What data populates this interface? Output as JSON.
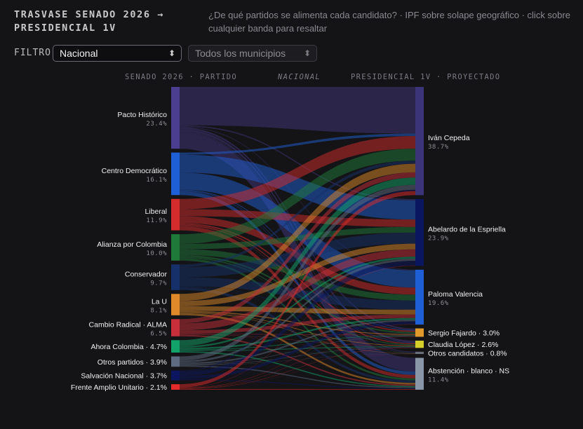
{
  "header": {
    "title": "TRASVASE SENADO 2026 → PRESIDENCIAL 1V",
    "subtitle": "¿De qué partidos se alimenta cada candidato? · IPF sobre solape geográfico · click sobre cualquier banda para resaltar"
  },
  "filters": {
    "label": "FILTRO",
    "scope_value": "Nacional",
    "municipio_value": "Todos los municipios"
  },
  "columns": {
    "left": "SENADO 2026 · PARTIDO",
    "middle": "NACIONAL",
    "right": "PRESIDENCIAL 1V · PROYECTADO"
  },
  "chart_data": {
    "type": "sankey",
    "sources": [
      {
        "name": "Pacto Histórico",
        "share": 23.4,
        "pct_label": "23.4%",
        "color": "#4b3d8f"
      },
      {
        "name": "Centro Democrático",
        "share": 16.1,
        "pct_label": "16.1%",
        "color": "#1f5fd6"
      },
      {
        "name": "Liberal",
        "share": 11.9,
        "pct_label": "11.9%",
        "color": "#d42c2c"
      },
      {
        "name": "Alianza por Colombia",
        "share": 10.0,
        "pct_label": "10.0%",
        "color": "#1f7a3a"
      },
      {
        "name": "Conservador",
        "share": 9.7,
        "pct_label": "9.7%",
        "color": "#16306a"
      },
      {
        "name": "La U",
        "share": 8.1,
        "pct_label": "8.1%",
        "color": "#e0892a"
      },
      {
        "name": "Cambio Radical · ALMA",
        "share": 6.5,
        "pct_label": "6.5%",
        "color": "#c82f3a"
      },
      {
        "name": "Ahora Colombia · 4.7%",
        "share": 4.7,
        "pct_label": "",
        "color": "#12a36a"
      },
      {
        "name": "Otros partidos · 3.9%",
        "share": 3.9,
        "pct_label": "",
        "color": "#5e6a80"
      },
      {
        "name": "Salvación Nacional · 3.7%",
        "share": 3.7,
        "pct_label": "",
        "color": "#0c1560"
      },
      {
        "name": "Frente Amplio Unitario · 2.1%",
        "share": 2.1,
        "pct_label": "",
        "color": "#e42a2a"
      }
    ],
    "targets": [
      {
        "name": "Iván Cepeda",
        "share": 38.7,
        "pct_label": "38.7%",
        "color": "#3b3478"
      },
      {
        "name": "Abelardo de la Espriella",
        "share": 23.9,
        "pct_label": "23.9%",
        "color": "#0b1660"
      },
      {
        "name": "Paloma Valencia",
        "share": 19.6,
        "pct_label": "19.6%",
        "color": "#1f5fd6"
      },
      {
        "name": "Sergio Fajardo · 3.0%",
        "share": 3.0,
        "pct_label": "",
        "color": "#e0992a"
      },
      {
        "name": "Claudia López · 2.6%",
        "share": 2.6,
        "pct_label": "",
        "color": "#d6cf2a"
      },
      {
        "name": "Otros candidatos · 0.8%",
        "share": 0.8,
        "pct_label": "",
        "color": "#6b6f7a"
      },
      {
        "name": "Abstención · blanco · NS",
        "share": 11.4,
        "pct_label": "11.4%",
        "color": "#8896a8"
      }
    ],
    "flow_weights": [
      [
        0.62,
        0.02,
        0.01,
        0.03,
        0.04,
        0.02,
        0.26
      ],
      [
        0.05,
        0.42,
        0.4,
        0.02,
        0.01,
        0.01,
        0.09
      ],
      [
        0.33,
        0.22,
        0.22,
        0.05,
        0.04,
        0.01,
        0.13
      ],
      [
        0.37,
        0.2,
        0.22,
        0.07,
        0.04,
        0.01,
        0.09
      ],
      [
        0.1,
        0.4,
        0.35,
        0.02,
        0.01,
        0.01,
        0.11
      ],
      [
        0.33,
        0.25,
        0.22,
        0.05,
        0.03,
        0.02,
        0.1
      ],
      [
        0.25,
        0.4,
        0.2,
        0.03,
        0.02,
        0.01,
        0.09
      ],
      [
        0.48,
        0.14,
        0.14,
        0.06,
        0.06,
        0.01,
        0.11
      ],
      [
        0.4,
        0.2,
        0.15,
        0.05,
        0.05,
        0.03,
        0.12
      ],
      [
        0.1,
        0.45,
        0.3,
        0.02,
        0.02,
        0.01,
        0.1
      ],
      [
        0.62,
        0.05,
        0.05,
        0.05,
        0.06,
        0.02,
        0.15
      ]
    ]
  }
}
